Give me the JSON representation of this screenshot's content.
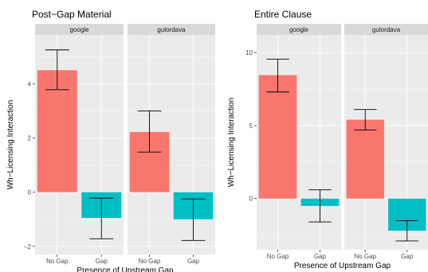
{
  "colors": {
    "no_gap": "#F8766D",
    "gap": "#00BFC4",
    "panel_bg": "#EBEBEB",
    "strip_bg": "#D9D9D9",
    "grid": "#FFFFFF"
  },
  "chart_data": [
    {
      "type": "bar",
      "title": "Post−Gap Material",
      "xlabel": "Presence of Upstream Gap",
      "ylabel": "Wh−Licensing Interaction",
      "categories": [
        "No Gap",
        "Gap"
      ],
      "ylim": [
        -2.3,
        5.8
      ],
      "yticks": [
        -2,
        0,
        2,
        4
      ],
      "ytick_labels": [
        "−2",
        "0",
        "2",
        "4"
      ],
      "grid": true,
      "facets": [
        {
          "label": "google",
          "values": [
            4.5,
            -0.95
          ],
          "error_low": [
            3.78,
            -1.72
          ],
          "error_high": [
            5.25,
            -0.22
          ]
        },
        {
          "label": "gulordava",
          "values": [
            2.22,
            -1.0
          ],
          "error_low": [
            1.48,
            -1.78
          ],
          "error_high": [
            3.0,
            -0.25
          ]
        }
      ]
    },
    {
      "type": "bar",
      "title": "Entire Clause",
      "xlabel": "Presence of Upstream Gap",
      "ylabel": "Wh−Licensing Interaction",
      "categories": [
        "No Gap",
        "Gap"
      ],
      "ylim": [
        -3.5,
        11.2
      ],
      "yticks": [
        0,
        5,
        10
      ],
      "ytick_labels": [
        "0",
        "5",
        "10"
      ],
      "grid": true,
      "facets": [
        {
          "label": "google",
          "values": [
            8.45,
            -0.5
          ],
          "error_low": [
            7.3,
            -1.6
          ],
          "error_high": [
            9.55,
            0.6
          ]
        },
        {
          "label": "gulordava",
          "values": [
            5.4,
            -2.2
          ],
          "error_low": [
            4.7,
            -2.9
          ],
          "error_high": [
            6.1,
            -1.5
          ]
        }
      ]
    }
  ]
}
